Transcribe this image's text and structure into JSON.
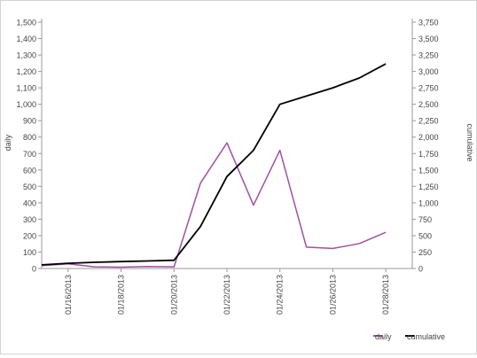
{
  "chart_data": {
    "type": "line",
    "xlabel": "",
    "ylabel_left": "daily",
    "ylabel_right": "cumulative",
    "ylim_left": [
      0,
      1500
    ],
    "ylim_right": [
      0,
      3750
    ],
    "yticks_left": [
      0,
      100,
      200,
      300,
      400,
      500,
      600,
      700,
      800,
      900,
      1000,
      1100,
      1200,
      1300,
      1400,
      1500
    ],
    "yticks_right": [
      0,
      250,
      500,
      750,
      1000,
      1250,
      1500,
      1750,
      2000,
      2250,
      2500,
      2750,
      3000,
      3250,
      3500,
      3750
    ],
    "x": [
      "01/15/2013",
      "01/16/2013",
      "01/17/2013",
      "01/18/2013",
      "01/19/2013",
      "01/20/2013",
      "01/21/2013",
      "01/22/2013",
      "01/23/2013",
      "01/24/2013",
      "01/25/2013",
      "01/26/2013",
      "01/27/2013",
      "01/28/2013",
      "01/29/2013"
    ],
    "x_tick_labels": [
      "01/16/2013",
      "01/18/2013",
      "01/20/2013",
      "01/22/2013",
      "01/24/2013",
      "01/26/2013",
      "01/28/2013"
    ],
    "series": [
      {
        "name": "daily",
        "axis": "left",
        "color": "#a050a0",
        "values": [
          18,
          28,
          10,
          8,
          12,
          10,
          520,
          765,
          385,
          720,
          130,
          122,
          152,
          220,
          null
        ]
      },
      {
        "name": "cumulative",
        "axis": "right",
        "color": "#000000",
        "values": [
          55,
          80,
          95,
          105,
          115,
          125,
          640,
          1400,
          1800,
          2500,
          2625,
          2750,
          2900,
          3115,
          null
        ]
      }
    ],
    "legend_position": "bottom-right",
    "grid": false
  }
}
